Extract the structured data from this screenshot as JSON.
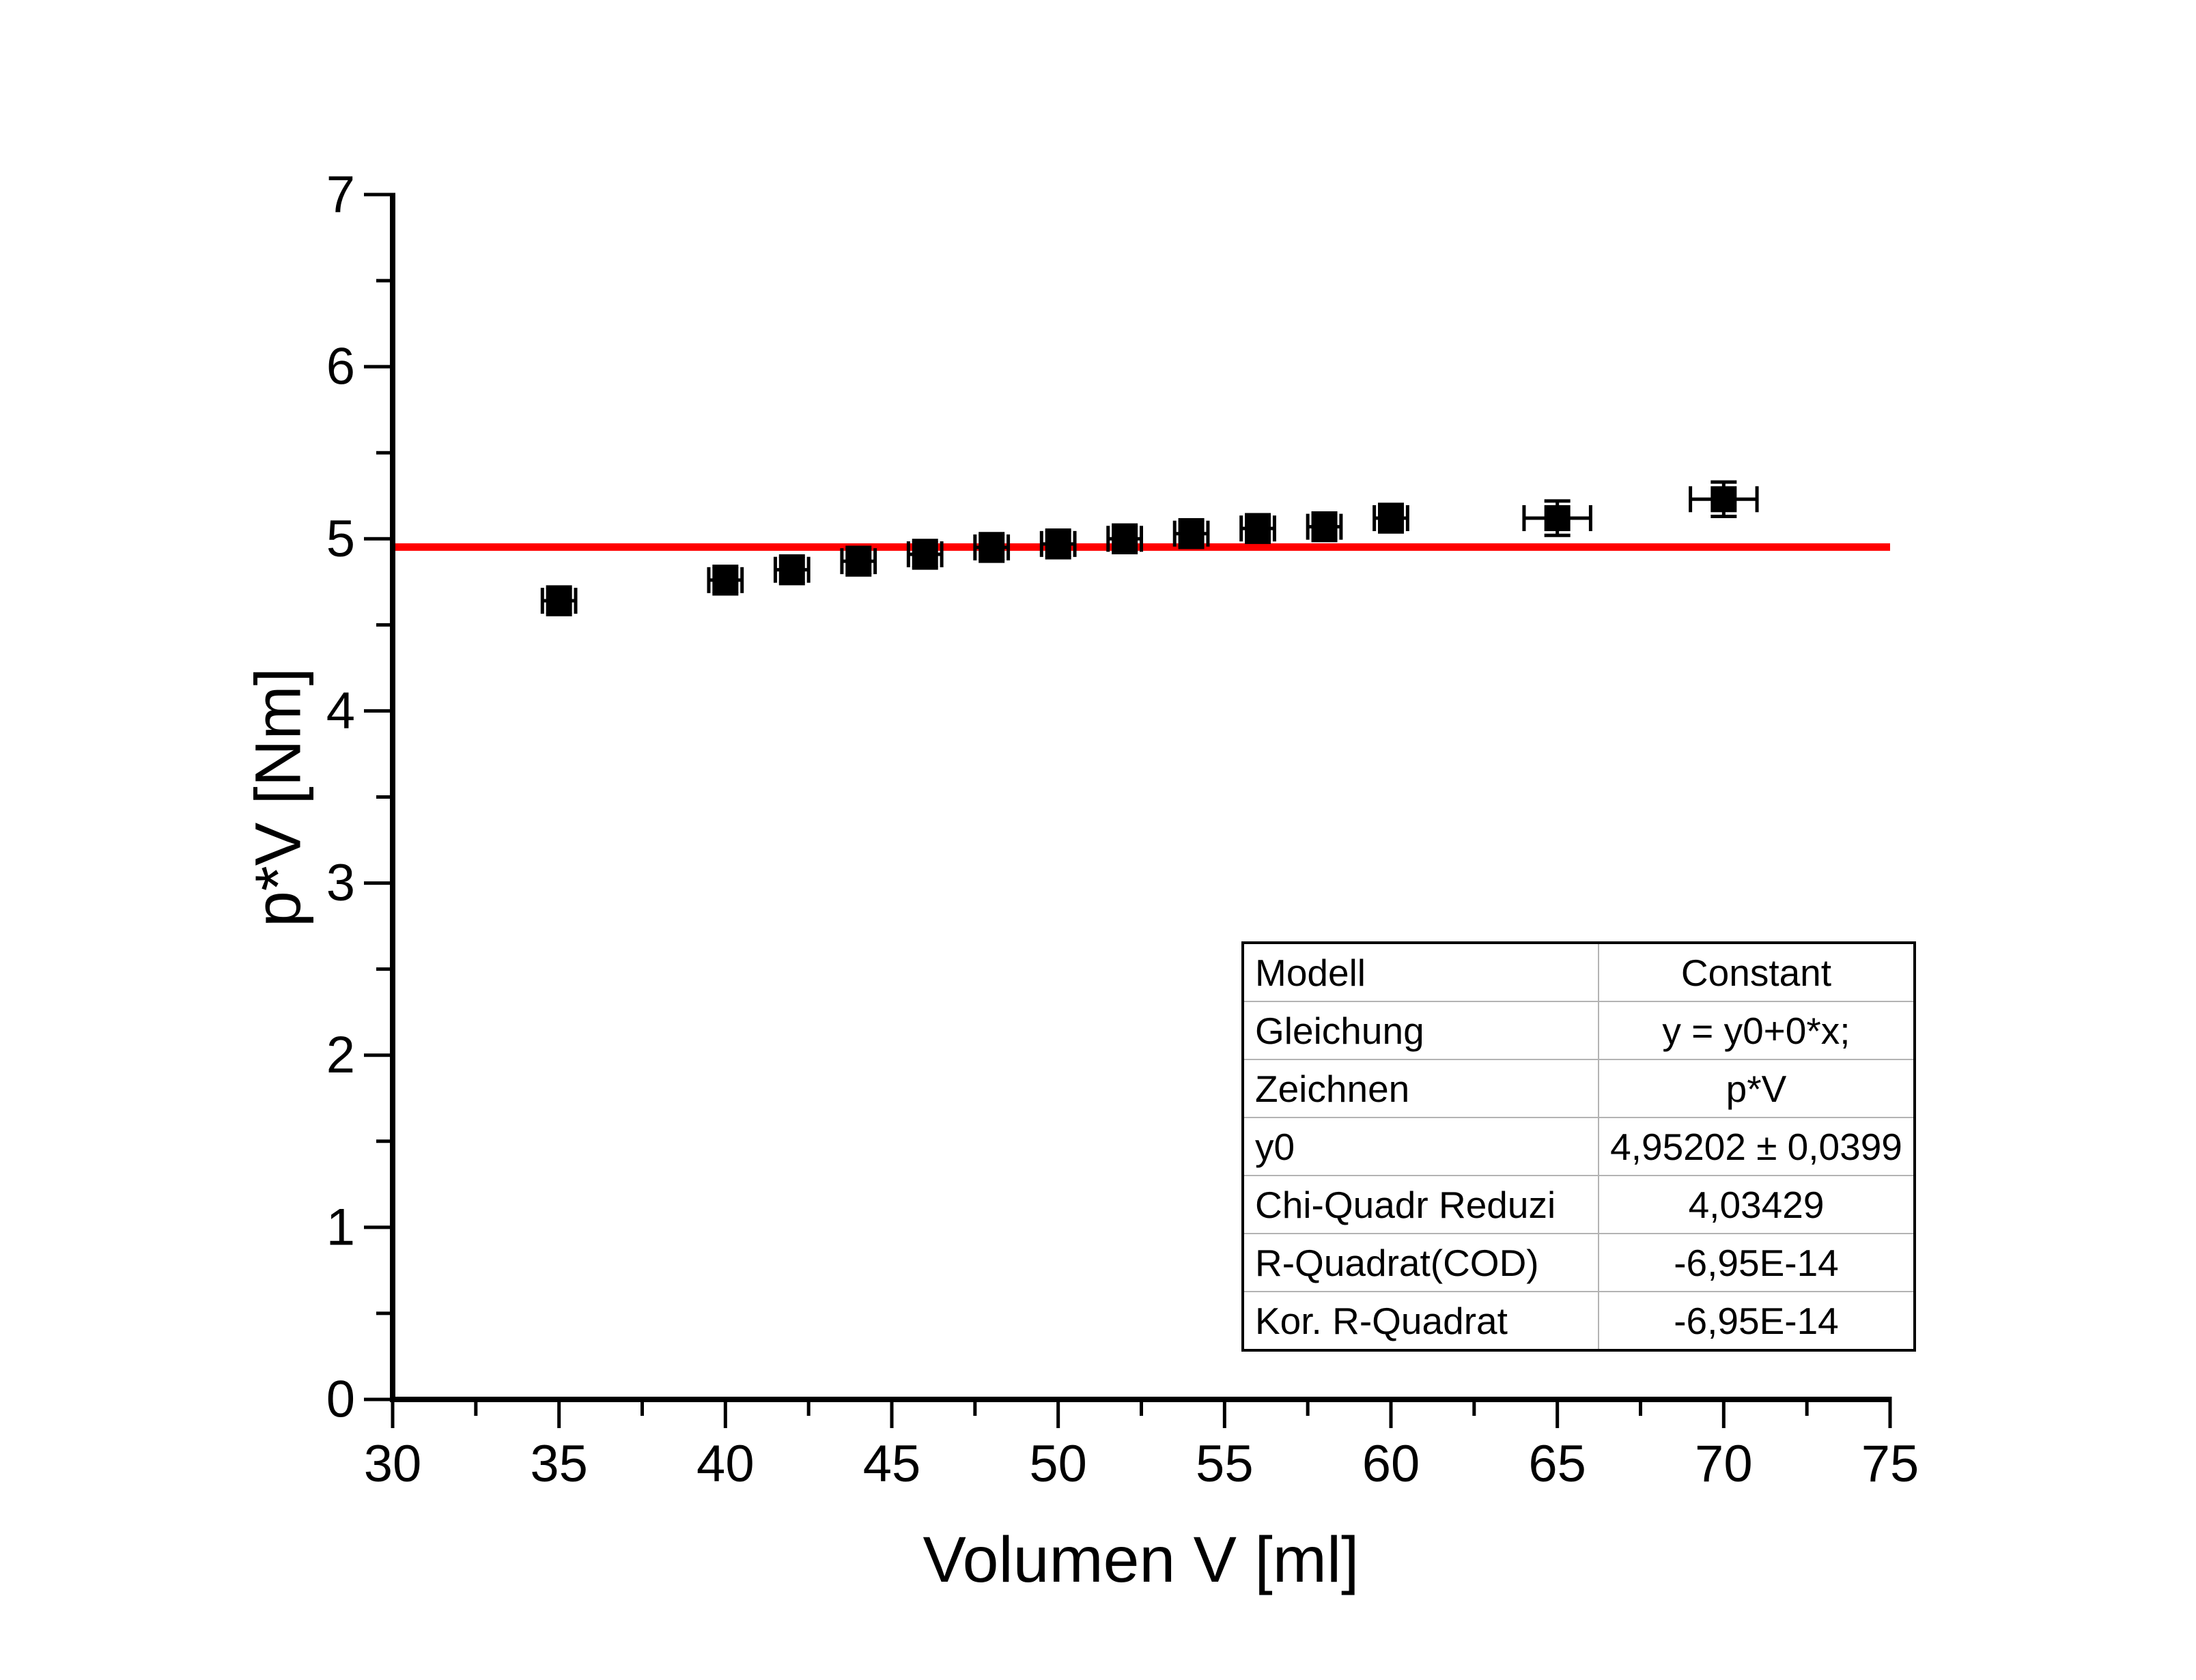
{
  "chart_data": {
    "type": "scatter",
    "title": "",
    "xlabel": "Volumen V [ml]",
    "ylabel": "p*V [Nm]",
    "xlim": [
      30,
      75
    ],
    "ylim": [
      0,
      7
    ],
    "x_major_ticks": [
      30,
      35,
      40,
      45,
      50,
      55,
      60,
      65,
      70,
      75
    ],
    "x_minor_ticks": [
      32.5,
      37.5,
      42.5,
      47.5,
      52.5,
      57.5,
      62.5,
      67.5,
      72.5
    ],
    "y_major_ticks": [
      0,
      1,
      2,
      3,
      4,
      5,
      6,
      7
    ],
    "y_minor_ticks": [
      0.5,
      1.5,
      2.5,
      3.5,
      4.5,
      5.5,
      6.5
    ],
    "grid": false,
    "legend": false,
    "series": [
      {
        "name": "p*V",
        "marker": "filled-square",
        "color": "#000000",
        "points": [
          {
            "x": 35,
            "y": 4.64,
            "xerr": 0.5,
            "yerr": 0.08
          },
          {
            "x": 40,
            "y": 4.76,
            "xerr": 0.5,
            "yerr": 0.08
          },
          {
            "x": 42,
            "y": 4.82,
            "xerr": 0.5,
            "yerr": 0.08
          },
          {
            "x": 44,
            "y": 4.87,
            "xerr": 0.5,
            "yerr": 0.08
          },
          {
            "x": 46,
            "y": 4.91,
            "xerr": 0.5,
            "yerr": 0.08
          },
          {
            "x": 48,
            "y": 4.95,
            "xerr": 0.5,
            "yerr": 0.08
          },
          {
            "x": 50,
            "y": 4.97,
            "xerr": 0.5,
            "yerr": 0.08
          },
          {
            "x": 52,
            "y": 5.0,
            "xerr": 0.5,
            "yerr": 0.08
          },
          {
            "x": 54,
            "y": 5.03,
            "xerr": 0.5,
            "yerr": 0.08
          },
          {
            "x": 56,
            "y": 5.06,
            "xerr": 0.5,
            "yerr": 0.08
          },
          {
            "x": 58,
            "y": 5.07,
            "xerr": 0.5,
            "yerr": 0.08
          },
          {
            "x": 60,
            "y": 5.12,
            "xerr": 0.5,
            "yerr": 0.08
          },
          {
            "x": 65,
            "y": 5.12,
            "xerr": 1.0,
            "yerr": 0.1
          },
          {
            "x": 70,
            "y": 5.23,
            "xerr": 1.0,
            "yerr": 0.1
          }
        ]
      }
    ],
    "fit_line": {
      "model": "constant",
      "y": 4.95202,
      "color": "#ff0000"
    },
    "stats_table": {
      "rows": [
        {
          "label": "Modell",
          "value": "Constant"
        },
        {
          "label": "Gleichung",
          "value": "y = y0+0*x;"
        },
        {
          "label": "Zeichnen",
          "value": "p*V"
        },
        {
          "label": "y0",
          "value": "4,95202 ± 0,0399"
        },
        {
          "label": "Chi-Quadr Reduzi",
          "value": "4,03429"
        },
        {
          "label": "R-Quadrat(COD)",
          "value": "-6,95E-14"
        },
        {
          "label": "Kor. R-Quadrat",
          "value": "-6,95E-14"
        }
      ]
    },
    "colors": {
      "marker": "#000000",
      "fit_line": "#ff0000",
      "axis": "#000000",
      "tick_label": "#000000",
      "table_outer_border": "#000000",
      "table_grid": "#b3b3b3",
      "background": "#ffffff"
    }
  }
}
